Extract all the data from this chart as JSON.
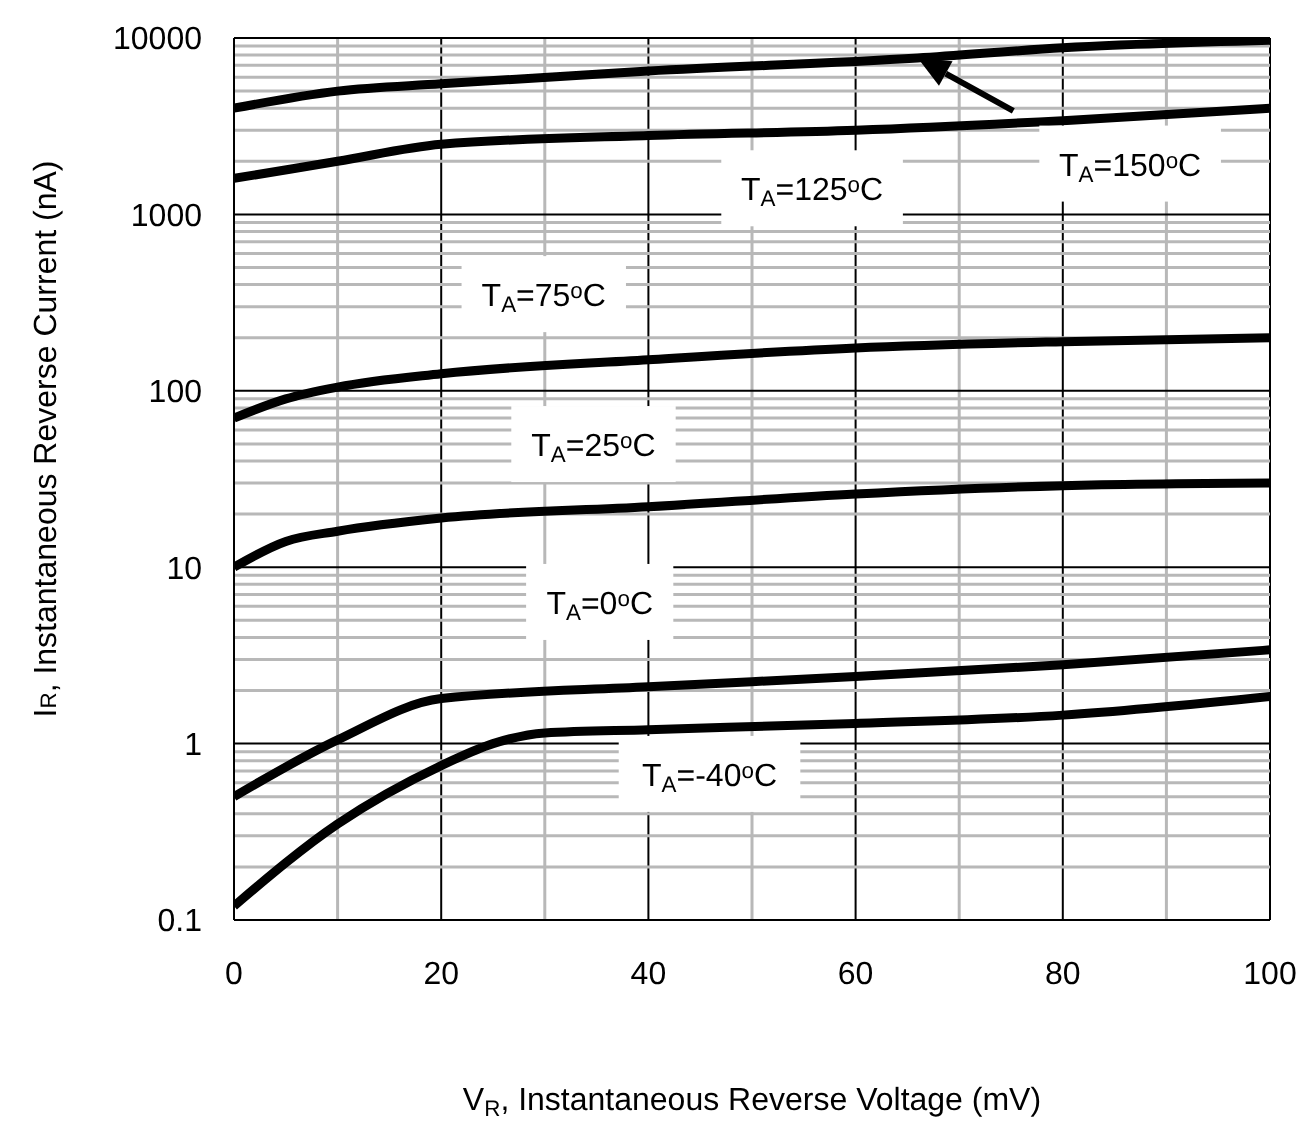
{
  "chart_data": {
    "type": "line",
    "xlabel": "V$_{R}$, Instantaneous Reverse Voltage (mV)",
    "ylabel": "I$_{R}$, Instantaneous Reverse Current (nA)",
    "log": "y",
    "grid": true,
    "marker": "none",
    "line_style": "solid",
    "xlim": [
      0,
      100
    ],
    "xticks": [
      0,
      {
        "value": 10,
        "label": null
      },
      20,
      {
        "value": 30,
        "label": null
      },
      40,
      {
        "value": 50,
        "label": null
      },
      60,
      {
        "value": 70,
        "label": null
      },
      80,
      {
        "value": 90,
        "label": null
      },
      100
    ],
    "ylim": [
      0.1,
      10000
    ],
    "yticks": [
      0.1,
      {
        "value": 0.2,
        "label": null
      },
      {
        "value": 0.3,
        "label": null
      },
      {
        "value": 0.4,
        "label": null
      },
      {
        "value": 0.5,
        "label": null
      },
      {
        "value": 0.6,
        "label": null
      },
      {
        "value": 0.7,
        "label": null
      },
      {
        "value": 0.8,
        "label": null
      },
      {
        "value": 0.9,
        "label": null
      },
      1,
      {
        "value": 2,
        "label": null
      },
      {
        "value": 3,
        "label": null
      },
      {
        "value": 4,
        "label": null
      },
      {
        "value": 5,
        "label": null
      },
      {
        "value": 6,
        "label": null
      },
      {
        "value": 7,
        "label": null
      },
      {
        "value": 8,
        "label": null
      },
      {
        "value": 9,
        "label": null
      },
      10,
      {
        "value": 20,
        "label": null
      },
      {
        "value": 30,
        "label": null
      },
      {
        "value": 40,
        "label": null
      },
      {
        "value": 50,
        "label": null
      },
      {
        "value": 60,
        "label": null
      },
      {
        "value": 70,
        "label": null
      },
      {
        "value": 80,
        "label": null
      },
      {
        "value": 90,
        "label": null
      },
      100,
      {
        "value": 200,
        "label": null
      },
      {
        "value": 300,
        "label": null
      },
      {
        "value": 400,
        "label": null
      },
      {
        "value": 500,
        "label": null
      },
      {
        "value": 600,
        "label": null
      },
      {
        "value": 700,
        "label": null
      },
      {
        "value": 800,
        "label": null
      },
      {
        "value": 900,
        "label": null
      },
      1000,
      {
        "value": 2000,
        "label": null
      },
      {
        "value": 3000,
        "label": null
      },
      {
        "value": 4000,
        "label": null
      },
      {
        "value": 5000,
        "label": null
      },
      {
        "value": 6000,
        "label": null
      },
      {
        "value": 7000,
        "label": null
      },
      {
        "value": 8000,
        "label": null
      },
      {
        "value": 9000,
        "label": null
      },
      10000
    ],
    "series": [
      {
        "color": "#000000",
        "x": [
          0,
          10,
          20,
          40,
          66,
          80,
          100
        ],
        "values": [
          4000,
          5000,
          5500,
          6500,
          7700,
          8800,
          9700
        ]
      },
      {
        "color": "#000000",
        "x": [
          0,
          10,
          20,
          40,
          60,
          80,
          100
        ],
        "values": [
          1600,
          2000,
          2500,
          2800,
          3000,
          3400,
          4000
        ]
      },
      {
        "color": "#000000",
        "x": [
          0,
          5,
          10,
          20,
          40,
          60,
          80,
          100
        ],
        "values": [
          70,
          90,
          105,
          125,
          150,
          175,
          190,
          200
        ]
      },
      {
        "color": "#000000",
        "x": [
          0,
          5,
          10,
          20,
          40,
          60,
          80,
          100
        ],
        "values": [
          10,
          14,
          16,
          19,
          22,
          26,
          29,
          30
        ]
      },
      {
        "color": "#000000",
        "x": [
          0,
          10,
          20,
          40,
          60,
          80,
          100
        ],
        "values": [
          0.5,
          1.05,
          1.8,
          2.1,
          2.4,
          2.8,
          3.4
        ]
      },
      {
        "color": "#000000",
        "x": [
          0,
          10,
          20,
          25,
          30,
          40,
          60,
          80,
          100
        ],
        "values": [
          0.12,
          0.35,
          0.75,
          1.0,
          1.15,
          1.2,
          1.3,
          1.45,
          1.85
        ]
      }
    ],
    "annotations": [
      "T$_{A}$=150$^{o}$C",
      "T$_{A}$=125$^{o}$C",
      "T$_{A}$=75$^{o}$C",
      "T$_{A}$=25$^{o}$C",
      "T$_{A}$=0$^{o}$C",
      "T$_{A}$=-40$^{o}$C"
    ]
  }
}
